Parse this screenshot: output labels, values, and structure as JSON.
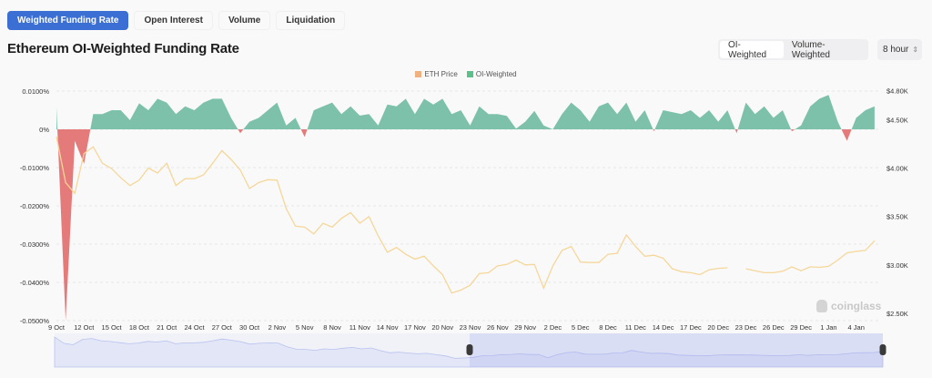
{
  "tabs": [
    {
      "label": "Weighted Funding Rate",
      "active": true
    },
    {
      "label": "Open Interest"
    },
    {
      "label": "Volume"
    },
    {
      "label": "Liquidation"
    }
  ],
  "title": "Ethereum OI-Weighted Funding Rate",
  "weighting": {
    "options": [
      "OI-Weighted",
      "Volume-Weighted"
    ],
    "selected": "OI-Weighted"
  },
  "interval": {
    "value": "8 hour",
    "icon": "up-down-chevron-icon"
  },
  "watermark": "coinglass",
  "colors": {
    "accent": "#3b6fd4",
    "positive": "#7dc1ab",
    "negative": "#e47a7a",
    "price": "#f5d79a",
    "navigator": "#dfe3f7"
  },
  "chart_data": {
    "type": "area+line",
    "legend": [
      "ETH Price",
      "OI-Weighted"
    ],
    "legend_position": "top-center",
    "grid": true,
    "x_ticks": [
      "9 Oct",
      "12 Oct",
      "15 Oct",
      "18 Oct",
      "21 Oct",
      "24 Oct",
      "27 Oct",
      "30 Oct",
      "2 Nov",
      "5 Nov",
      "8 Nov",
      "11 Nov",
      "14 Nov",
      "17 Nov",
      "20 Nov",
      "23 Nov",
      "26 Nov",
      "29 Nov",
      "2 Dec",
      "5 Dec",
      "8 Dec",
      "11 Dec",
      "14 Dec",
      "17 Dec",
      "20 Dec",
      "23 Dec",
      "26 Dec",
      "29 Dec",
      "1 Jan",
      "4 Jan"
    ],
    "y_left": {
      "ticks": [
        "0.0100%",
        "0%",
        "-0.0100%",
        "-0.0200%",
        "-0.0300%",
        "-0.0400%",
        "-0.0500%"
      ],
      "range": [
        -0.05,
        0.01
      ],
      "unit": "%"
    },
    "y_right": {
      "ticks": [
        "$4.80K",
        "$4.50K",
        "$4.00K",
        "$3.50K",
        "$3.00K",
        "$2.50K"
      ],
      "range": [
        2500,
        4800
      ]
    },
    "x": [
      "9 Oct",
      "10 Oct",
      "11 Oct",
      "12 Oct",
      "13 Oct",
      "14 Oct",
      "15 Oct",
      "16 Oct",
      "17 Oct",
      "18 Oct",
      "19 Oct",
      "20 Oct",
      "21 Oct",
      "22 Oct",
      "23 Oct",
      "24 Oct",
      "25 Oct",
      "26 Oct",
      "27 Oct",
      "28 Oct",
      "29 Oct",
      "30 Oct",
      "31 Oct",
      "1 Nov",
      "2 Nov",
      "3 Nov",
      "4 Nov",
      "5 Nov",
      "6 Nov",
      "7 Nov",
      "8 Nov",
      "9 Nov",
      "10 Nov",
      "11 Nov",
      "12 Nov",
      "13 Nov",
      "14 Nov",
      "15 Nov",
      "16 Nov",
      "17 Nov",
      "18 Nov",
      "19 Nov",
      "20 Nov",
      "21 Nov",
      "22 Nov",
      "23 Nov",
      "24 Nov",
      "25 Nov",
      "26 Nov",
      "27 Nov",
      "28 Nov",
      "29 Nov",
      "30 Nov",
      "1 Dec",
      "2 Dec",
      "3 Dec",
      "4 Dec",
      "5 Dec",
      "6 Dec",
      "7 Dec",
      "8 Dec",
      "9 Dec",
      "10 Dec",
      "11 Dec",
      "12 Dec",
      "13 Dec",
      "14 Dec",
      "15 Dec",
      "16 Dec",
      "17 Dec",
      "18 Dec",
      "19 Dec",
      "20 Dec",
      "21 Dec",
      "22 Dec",
      "23 Dec",
      "24 Dec",
      "25 Dec",
      "26 Dec",
      "27 Dec",
      "28 Dec",
      "29 Dec",
      "30 Dec",
      "31 Dec",
      "1 Jan",
      "2 Jan",
      "3 Jan",
      "4 Jan",
      "5 Jan",
      "6 Jan"
    ],
    "series": [
      {
        "name": "OI-Weighted",
        "axis": "left",
        "values": [
          0.0058,
          -0.05,
          -0.003,
          -0.009,
          0.004,
          0.004,
          0.005,
          0.005,
          0.0024,
          0.0068,
          0.005,
          0.008,
          0.007,
          0.004,
          0.006,
          0.005,
          0.007,
          0.008,
          0.008,
          0.003,
          -0.001,
          0.002,
          0.003,
          0.005,
          0.007,
          0.001,
          0.003,
          -0.002,
          0.005,
          0.006,
          0.007,
          0.004,
          0.006,
          0.0036,
          0.004,
          0.001,
          0.0065,
          0.006,
          0.008,
          0.004,
          0.008,
          0.0065,
          0.008,
          0.004,
          0.005,
          0.001,
          0.006,
          0.004,
          0.004,
          0.0035,
          0.0002,
          0.002,
          0.0048,
          0.001,
          0.0,
          0.004,
          0.007,
          0.005,
          0.002,
          0.006,
          0.007,
          0.004,
          0.007,
          0.002,
          0.005,
          -0.0005,
          0.005,
          0.0045,
          0.004,
          0.005,
          0.003,
          0.005,
          0.002,
          0.005,
          -0.001,
          0.007,
          0.004,
          0.006,
          0.003,
          0.005,
          -0.0005,
          0.001,
          0.006,
          0.008,
          0.009,
          0.002,
          -0.003,
          0.003,
          0.005,
          0.006
        ]
      },
      {
        "name": "ETH Price",
        "axis": "right",
        "values": [
          4325,
          3850,
          3740,
          4150,
          4220,
          4050,
          3995,
          3900,
          3820,
          3875,
          4000,
          3950,
          4050,
          3820,
          3890,
          3890,
          3930,
          4050,
          4180,
          4090,
          3980,
          3790,
          3850,
          3880,
          3875,
          3580,
          3400,
          3390,
          3320,
          3430,
          3390,
          3480,
          3540,
          3430,
          3500,
          3300,
          3130,
          3180,
          3110,
          3060,
          3090,
          2990,
          2900,
          2710,
          2740,
          2790,
          2910,
          2920,
          2990,
          3005,
          3050,
          3000,
          3005,
          2760,
          2990,
          3150,
          3190,
          3030,
          3025,
          3025,
          3110,
          3120,
          3310,
          3190,
          3090,
          3100,
          3070,
          2960,
          2930,
          2920,
          2900,
          2950,
          2965,
          2970,
          null,
          2960,
          2940,
          2920,
          2920,
          2935,
          2980,
          2940,
          2980,
          2975,
          2985,
          3050,
          3125,
          3140,
          3150,
          3250
        ]
      }
    ]
  }
}
